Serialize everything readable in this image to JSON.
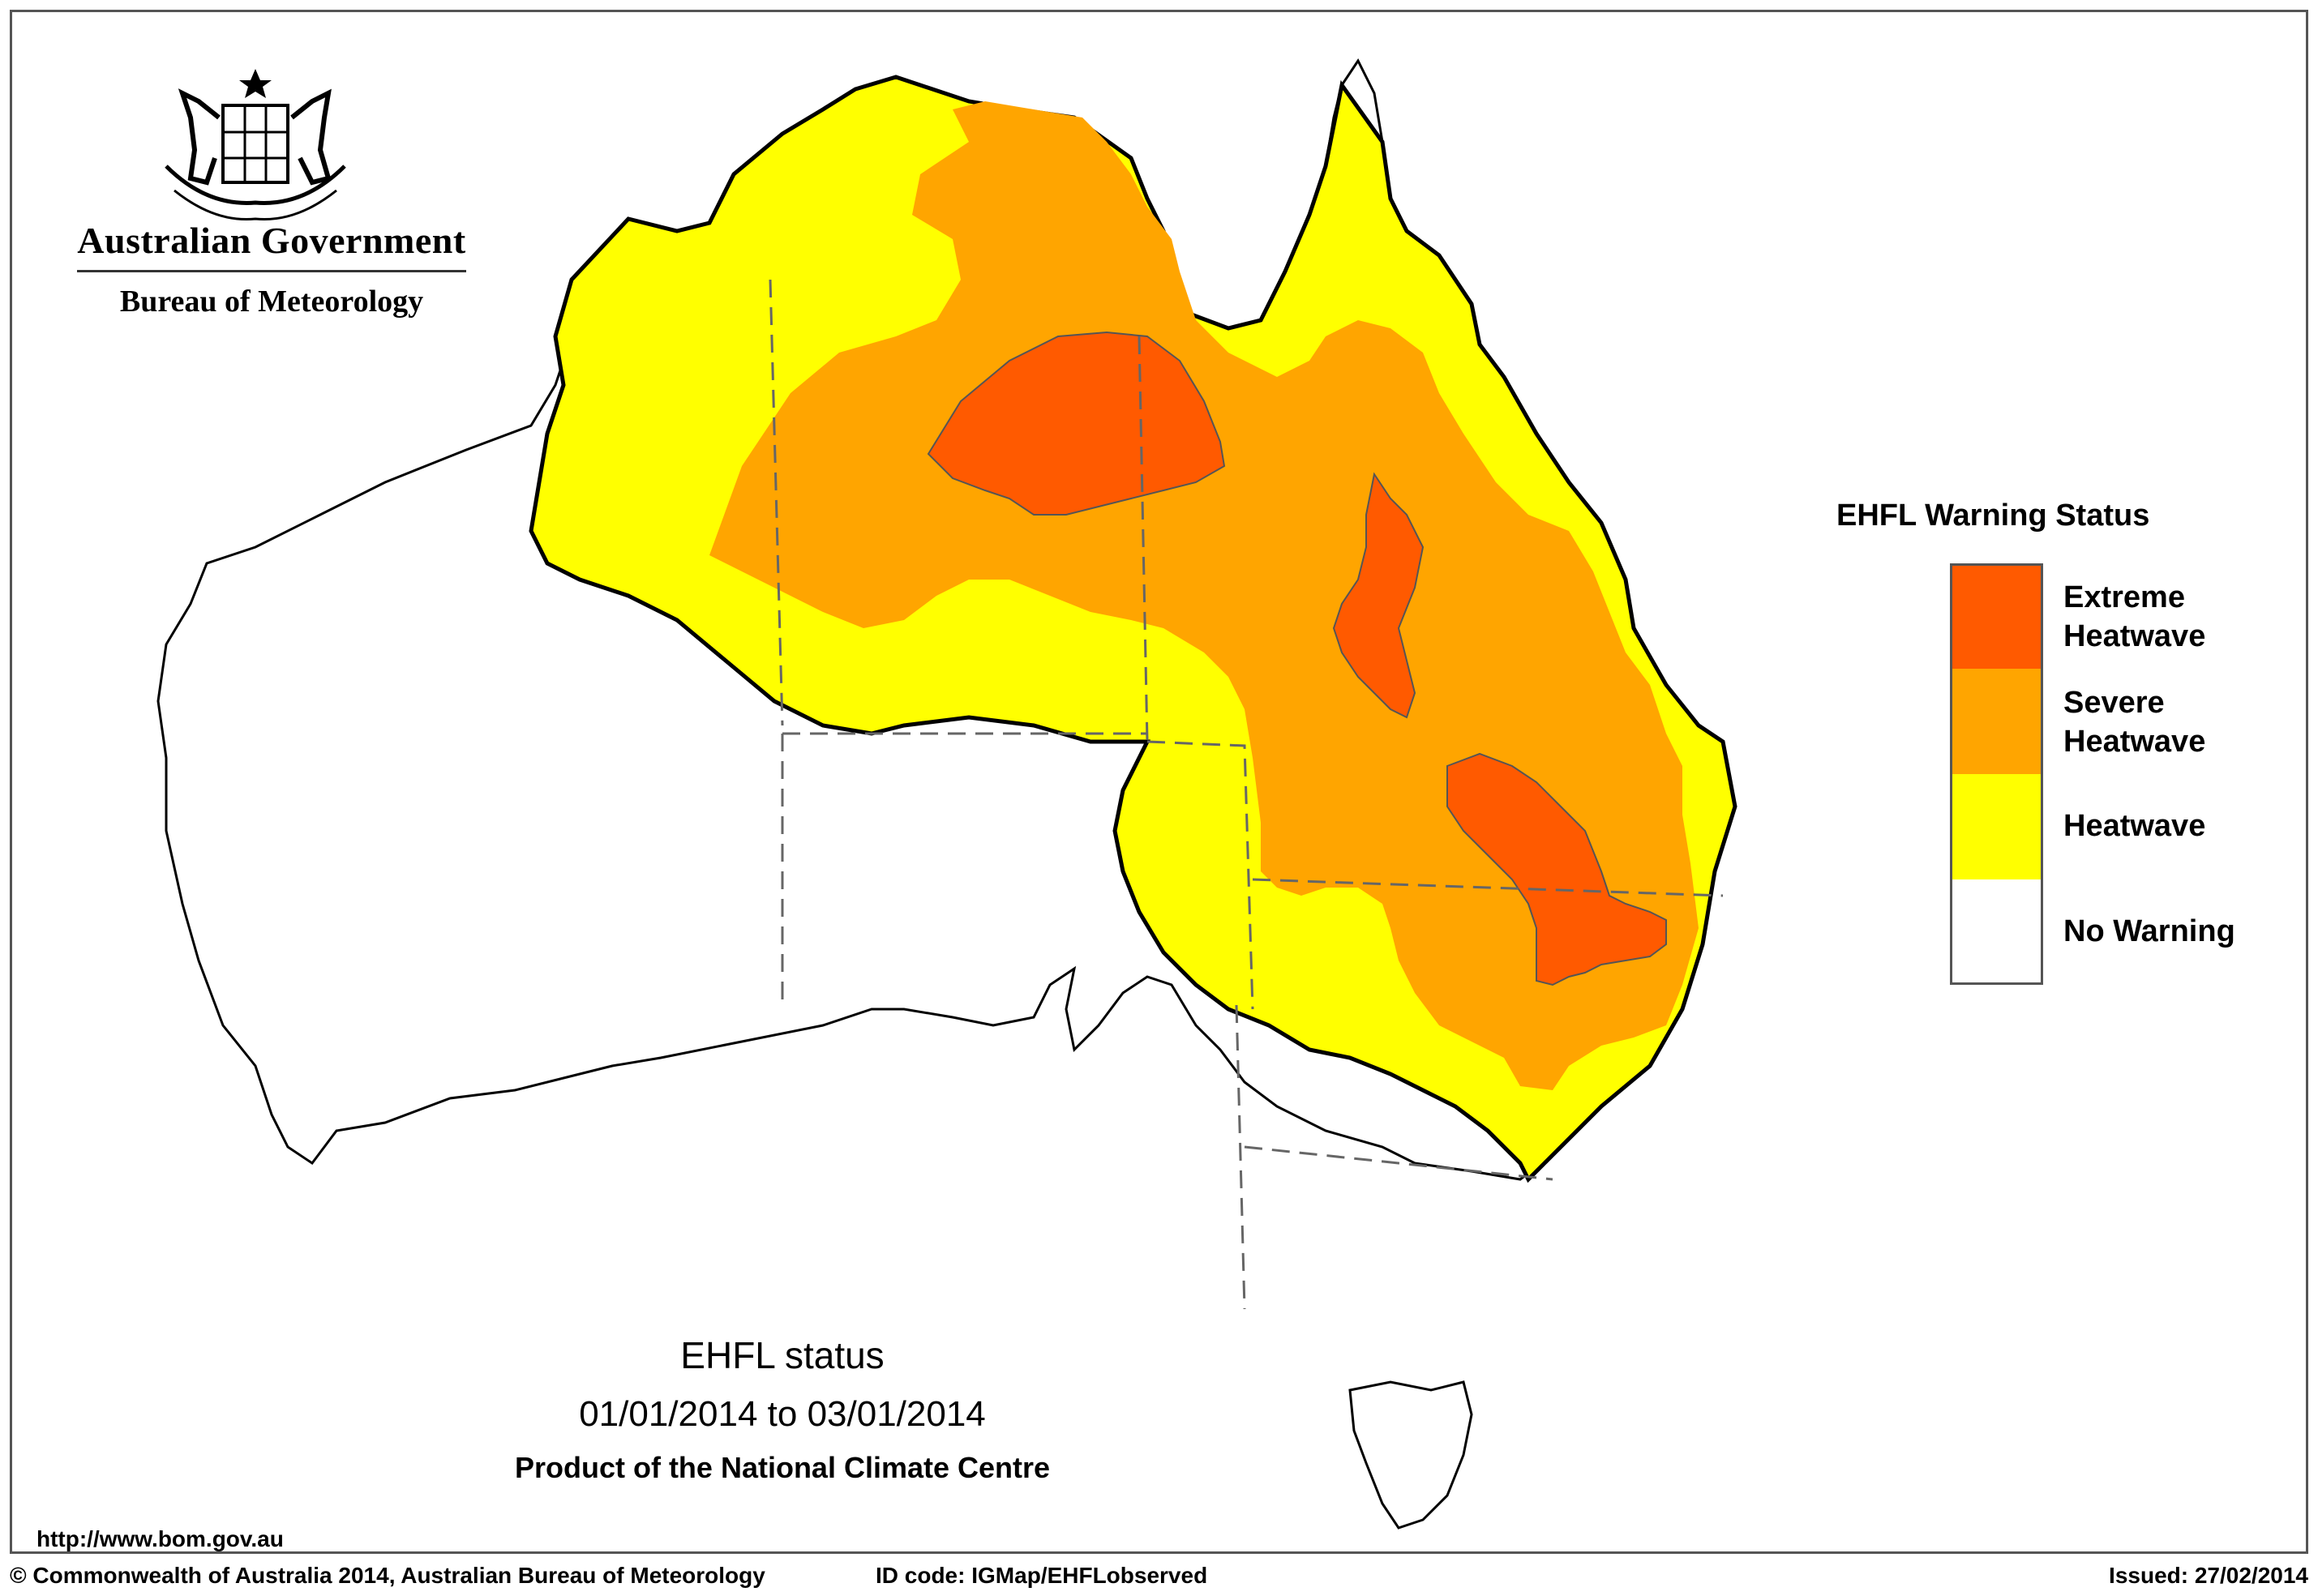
{
  "header": {
    "org_title": "Australian Government",
    "org_subtitle": "Bureau of Meteorology"
  },
  "legend": {
    "title": "EHFL Warning Status",
    "items": [
      {
        "label": "Extreme Heatwave",
        "color": "#ff5a00"
      },
      {
        "label": "Severe Heatwave",
        "color": "#ffa500"
      },
      {
        "label": "Heatwave",
        "color": "#ffff00"
      },
      {
        "label": "No Warning",
        "color": "#ffffff"
      }
    ]
  },
  "caption": {
    "title": "EHFL status",
    "dates": "01/01/2014 to 03/01/2014",
    "product": "Product of the National Climate Centre"
  },
  "url": "http://www.bom.gov.au",
  "footer": {
    "copyright": "© Commonwealth of Australia 2014, Australian Bureau of Meteorology",
    "id_code": "ID code: IGMap/EHFLobserved",
    "issued": "Issued: 27/02/2014"
  },
  "colors": {
    "extreme": "#ff5a00",
    "severe": "#ffa500",
    "heatwave": "#ffff00",
    "outline": "#000000"
  }
}
